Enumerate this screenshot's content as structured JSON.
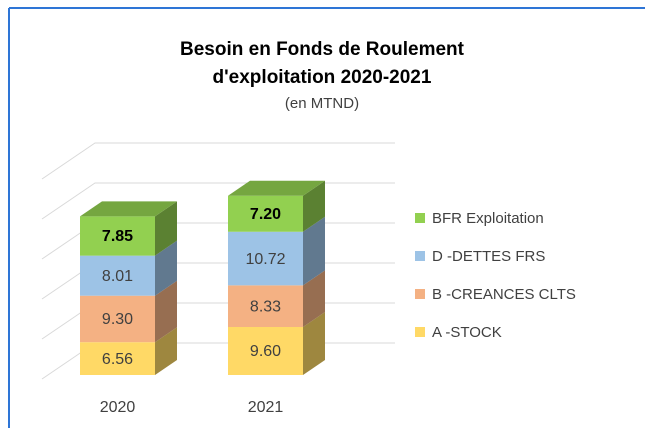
{
  "chart_data": {
    "type": "bar3d_stacked",
    "title": [
      "Besoin en Fonds de Roulement",
      "d'exploitation 2020-2021"
    ],
    "subtitle": "(en MTND)",
    "categories": [
      "2020",
      "2021"
    ],
    "series": [
      {
        "name": "A -STOCK",
        "color": "#ffd966",
        "values": [
          6.56,
          9.6
        ],
        "value_labels": [
          "6.56",
          "9.60"
        ]
      },
      {
        "name": "B -CREANCES CLTS",
        "color": "#f4b183",
        "values": [
          9.3,
          8.33
        ],
        "value_labels": [
          "9.30",
          "8.33"
        ]
      },
      {
        "name": "D  -DETTES FRS",
        "color": "#9dc3e6",
        "values": [
          8.01,
          10.72
        ],
        "value_labels": [
          "8.01",
          "10.72"
        ]
      },
      {
        "name": "BFR Exploitation",
        "color": "#92d050",
        "values": [
          7.85,
          7.2
        ],
        "value_labels": [
          "7.85",
          "7.20"
        ]
      }
    ],
    "ylim": [
      0,
      40
    ],
    "yticks": [
      0,
      8,
      16,
      24,
      32,
      40
    ],
    "grid": true,
    "legend": "right"
  }
}
